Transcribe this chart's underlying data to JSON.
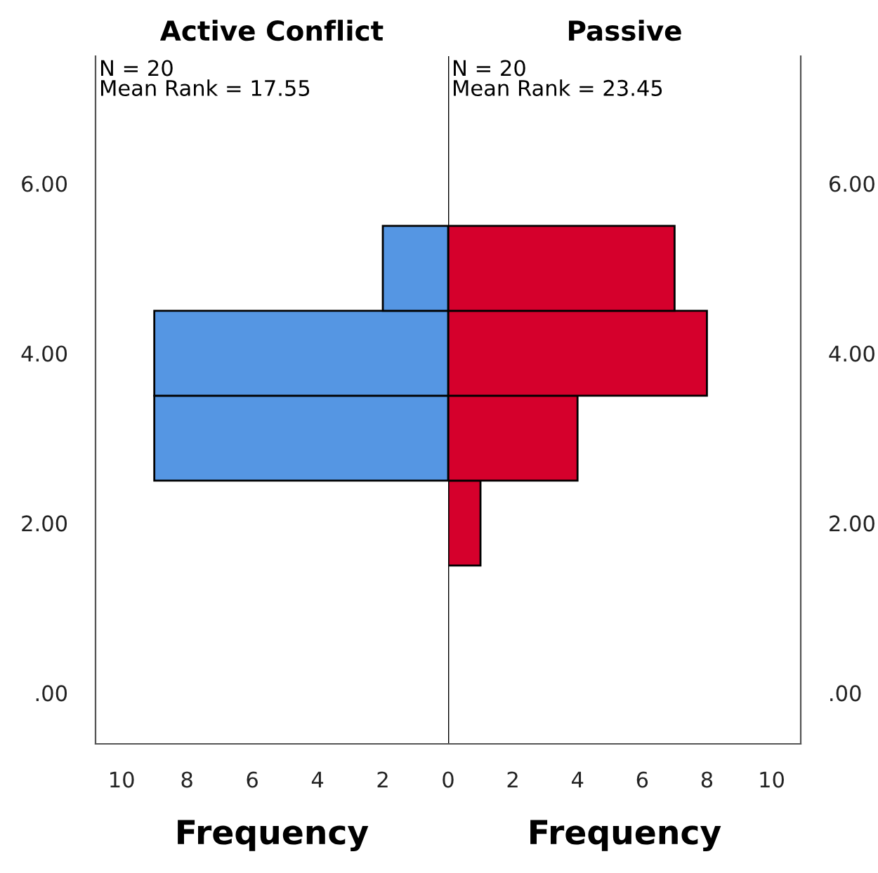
{
  "chart_data": [
    {
      "type": "histogram",
      "orientation": "horizontal",
      "title": "Active Conflict",
      "xlabel": "Frequency",
      "annotations": [
        "N = 20",
        "Mean Rank = 17.55"
      ],
      "bins": [
        1.5,
        2.5,
        3.5,
        4.5,
        5.5
      ],
      "values": [
        null,
        9,
        9,
        2
      ],
      "color": "#5596e3",
      "xlim": [
        10.8,
        0
      ],
      "xticks": [
        10,
        8,
        6,
        4,
        2
      ],
      "ylim": [
        -0.6,
        7.5
      ],
      "yticks": [
        {
          "value": 0,
          "label": ".00"
        },
        {
          "value": 2,
          "label": "2.00"
        },
        {
          "value": 4,
          "label": "4.00"
        },
        {
          "value": 6,
          "label": "6.00"
        }
      ],
      "grid": false
    },
    {
      "type": "histogram",
      "orientation": "horizontal",
      "title": "Passive",
      "xlabel": "Frequency",
      "annotations": [
        "N = 20",
        "Mean Rank = 23.45"
      ],
      "bins": [
        1.5,
        2.5,
        3.5,
        4.5,
        5.5
      ],
      "values": [
        1,
        4,
        8,
        7
      ],
      "color": "#d5002c",
      "xlim": [
        0,
        10.9
      ],
      "xticks": [
        0,
        2,
        4,
        6,
        8,
        10
      ],
      "ylim": [
        -0.6,
        7.5
      ],
      "yticks": [
        {
          "value": 0,
          "label": ".00"
        },
        {
          "value": 2,
          "label": "2.00"
        },
        {
          "value": 4,
          "label": "4.00"
        },
        {
          "value": 6,
          "label": "6.00"
        }
      ],
      "grid": false
    }
  ]
}
